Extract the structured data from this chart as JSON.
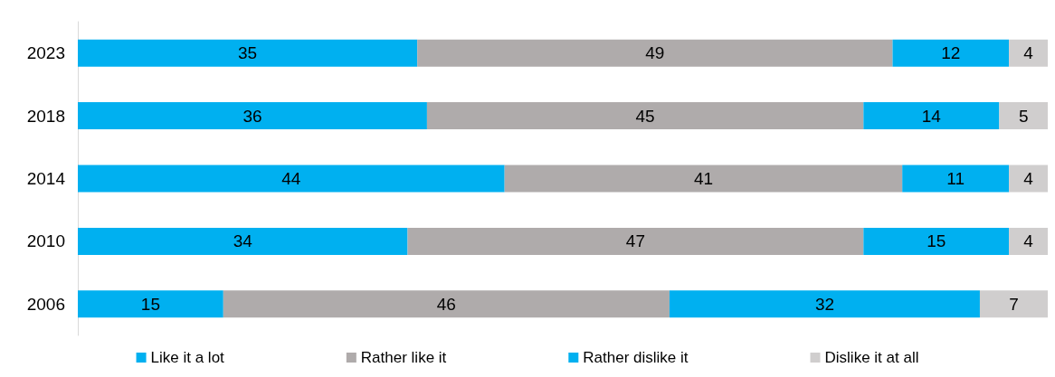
{
  "chart_data": {
    "type": "bar",
    "orientation": "horizontal",
    "stacked": true,
    "categories": [
      "2023",
      "2018",
      "2014",
      "2010",
      "2006"
    ],
    "series": [
      {
        "name": "Like it a lot",
        "color": "#00b0f0",
        "values": [
          35,
          36,
          44,
          34,
          15
        ]
      },
      {
        "name": "Rather like it",
        "color": "#afabab",
        "values": [
          49,
          45,
          41,
          47,
          46
        ]
      },
      {
        "name": "Rather dislike it",
        "color": "#00b0f0",
        "values": [
          12,
          14,
          11,
          15,
          32
        ]
      },
      {
        "name": "Dislike it at all",
        "color": "#d0cece",
        "values": [
          4,
          5,
          4,
          4,
          7
        ]
      }
    ],
    "data_labels": true,
    "legend": "bottom",
    "tick_labels": "y"
  }
}
